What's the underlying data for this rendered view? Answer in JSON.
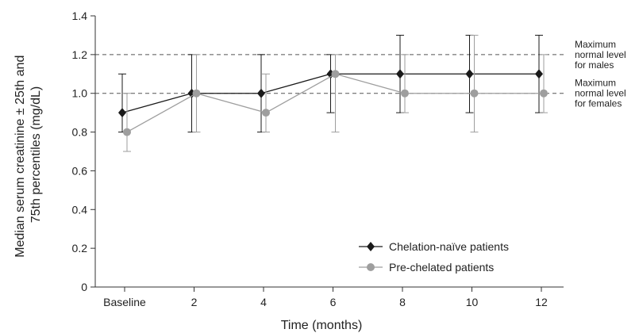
{
  "chart_data": {
    "type": "line",
    "xlabel": "Time (months)",
    "ylabel_lines": [
      "Median serum creatinine ± 25th and",
      "75th percentiles (mg/dL)"
    ],
    "categories": [
      "Baseline",
      "2",
      "4",
      "6",
      "8",
      "10",
      "12"
    ],
    "yticks": [
      "0",
      "0.2",
      "0.4",
      "0.6",
      "0.8",
      "1.0",
      "1.2",
      "1.4"
    ],
    "ylim": [
      0,
      1.4
    ],
    "grid": false,
    "legend_position": "bottom-right",
    "series": [
      {
        "name": "Chelation-naïve patients",
        "color": "#1a1a1a",
        "marker": "diamond",
        "values": [
          0.9,
          1.0,
          1.0,
          1.1,
          1.1,
          1.1,
          1.1
        ],
        "lower": [
          0.8,
          0.8,
          0.8,
          0.9,
          0.9,
          0.9,
          0.9
        ],
        "upper": [
          1.1,
          1.2,
          1.2,
          1.2,
          1.3,
          1.3,
          1.3
        ]
      },
      {
        "name": "Pre-chelated patients",
        "color": "#9e9e9e",
        "marker": "circle",
        "values": [
          0.8,
          1.0,
          0.9,
          1.1,
          1.0,
          1.0,
          1.0
        ],
        "lower": [
          0.7,
          0.8,
          0.8,
          0.8,
          0.9,
          0.8,
          0.9
        ],
        "upper": [
          1.0,
          1.2,
          1.1,
          1.2,
          1.2,
          1.3,
          1.2
        ]
      }
    ],
    "reference_lines": [
      {
        "y": 1.2,
        "label_lines": [
          "Maximum",
          "normal level",
          "for males"
        ]
      },
      {
        "y": 1.0,
        "label_lines": [
          "Maximum",
          "normal level",
          "for females"
        ]
      }
    ]
  }
}
